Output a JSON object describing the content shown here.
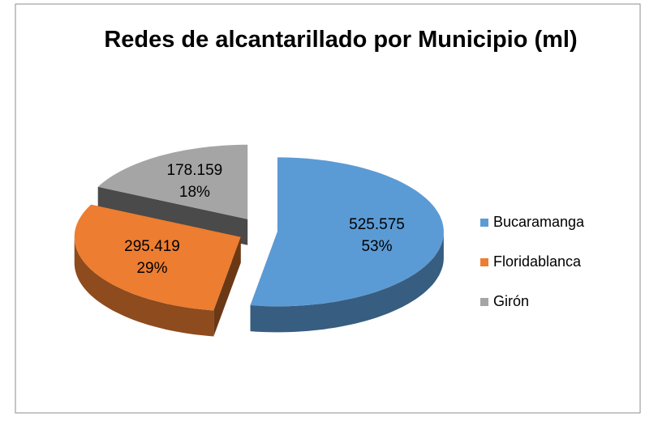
{
  "chart_data": {
    "type": "pie3d",
    "title": "Redes de alcantarillado por Municipio (ml)",
    "categories": [
      "Bucaramanga",
      "Floridablanca",
      "Girón"
    ],
    "values": [
      525575,
      295419,
      178159
    ],
    "value_labels": [
      "525.575",
      "295.419",
      "178.159"
    ],
    "percent_labels": [
      "53%",
      "29%",
      "18%"
    ],
    "colors": [
      "#5b9bd5",
      "#ed7d31",
      "#a5a5a5"
    ],
    "legend": "right"
  }
}
